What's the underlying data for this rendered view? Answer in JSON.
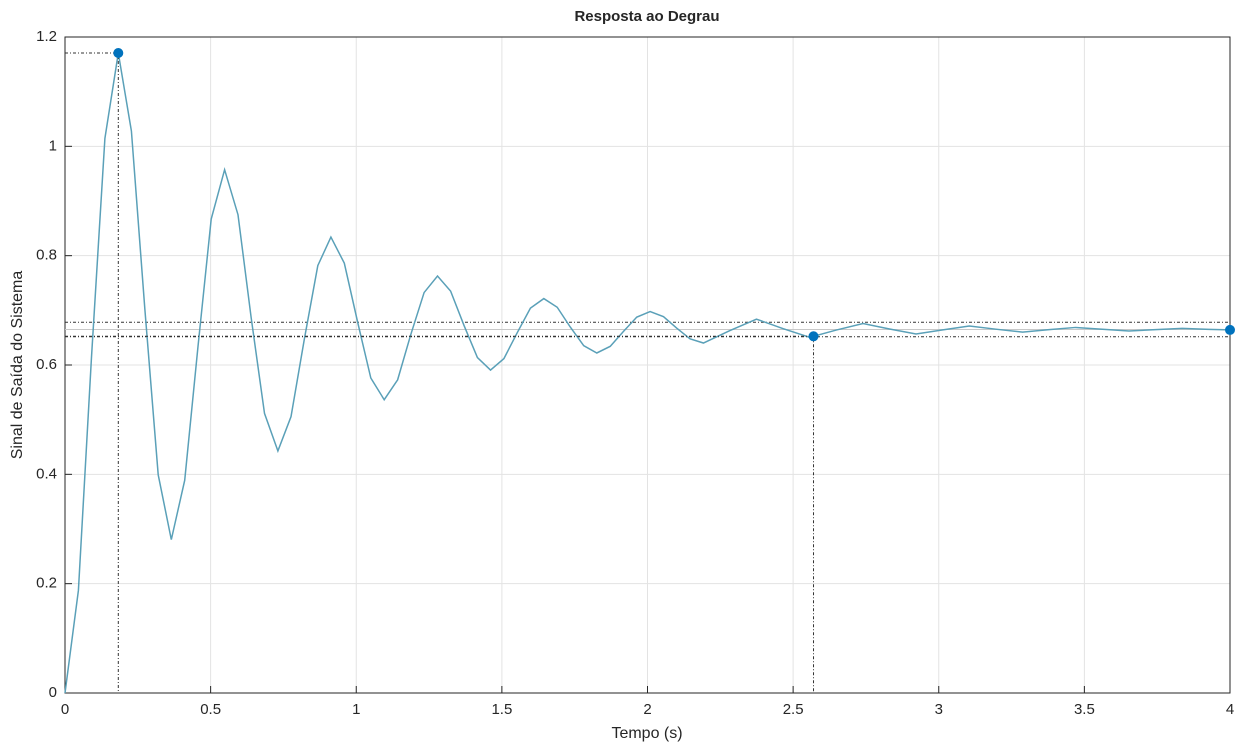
{
  "chart_data": {
    "type": "line",
    "title": "Resposta ao Degrau",
    "xlabel": "Tempo (s)",
    "ylabel": "Sinal de Saída do Sistema",
    "color": "#5aa0b8",
    "marker_color": "#0072bd",
    "grid": true,
    "xlim": [
      0,
      4
    ],
    "ylim": [
      0,
      1.2
    ],
    "xticks": [
      0,
      0.5,
      1,
      1.5,
      2,
      2.5,
      3,
      3.5,
      4
    ],
    "yticks": [
      0,
      0.2,
      0.4,
      0.6,
      0.8,
      1,
      1.2
    ],
    "x": [
      0,
      0.046,
      0.091,
      0.137,
      0.183,
      0.228,
      0.274,
      0.32,
      0.365,
      0.411,
      0.457,
      0.502,
      0.548,
      0.594,
      0.639,
      0.685,
      0.731,
      0.776,
      0.822,
      0.868,
      0.913,
      0.959,
      1.005,
      1.05,
      1.096,
      1.142,
      1.187,
      1.233,
      1.279,
      1.324,
      1.37,
      1.416,
      1.461,
      1.507,
      1.553,
      1.598,
      1.644,
      1.69,
      1.735,
      1.781,
      1.826,
      1.872,
      1.918,
      1.963,
      2.009,
      2.055,
      2.1,
      2.146,
      2.192,
      2.283,
      2.374,
      2.466,
      2.557,
      2.648,
      2.74,
      2.831,
      2.922,
      3.014,
      3.105,
      3.196,
      3.288,
      3.379,
      3.47,
      3.562,
      3.653,
      3.744,
      3.836,
      3.927,
      4
    ],
    "values": [
      0,
      0.1876,
      0.6145,
      1.0145,
      1.1707,
      1.028,
      0.7034,
      0.3993,
      0.2806,
      0.389,
      0.6357,
      0.867,
      0.9573,
      0.8749,
      0.6872,
      0.5114,
      0.4428,
      0.5055,
      0.6481,
      0.7818,
      0.834,
      0.7863,
      0.6778,
      0.5762,
      0.5365,
      0.5728,
      0.6552,
      0.7325,
      0.7627,
      0.7352,
      0.6724,
      0.6137,
      0.5907,
      0.6117,
      0.6593,
      0.704,
      0.7215,
      0.7056,
      0.6693,
      0.6353,
      0.622,
      0.6341,
      0.6617,
      0.6875,
      0.6977,
      0.6884,
      0.6675,
      0.6478,
      0.6402,
      0.6631,
      0.6839,
      0.6664,
      0.6506,
      0.6639,
      0.6759,
      0.6658,
      0.6567,
      0.6643,
      0.6713,
      0.6655,
      0.6602,
      0.6647,
      0.6687,
      0.6653,
      0.6622,
      0.6648,
      0.6671,
      0.6651,
      0.6642
    ],
    "markers": [
      {
        "x": 0.183,
        "y": 1.1707
      },
      {
        "x": 2.57,
        "y": 0.6525
      },
      {
        "x": 4,
        "y": 0.6642
      }
    ],
    "final_value": 0.665,
    "settling_band": [
      0.6517,
      0.6783
    ]
  }
}
